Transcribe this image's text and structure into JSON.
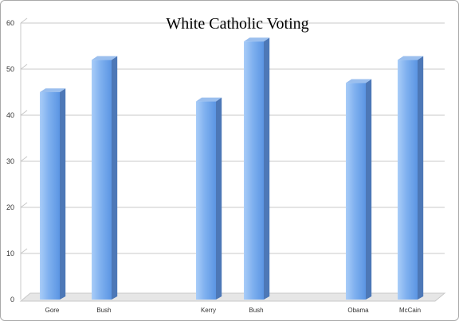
{
  "chart_data": {
    "type": "bar",
    "title": "White Catholic Voting",
    "categories": [
      "Gore",
      "Bush",
      "Kerry",
      "Bush",
      "Obama",
      "McCain"
    ],
    "values": [
      45,
      52,
      43,
      56,
      47,
      52
    ],
    "groups": [
      {
        "members": [
          0,
          1
        ]
      },
      {
        "members": [
          2,
          3
        ]
      },
      {
        "members": [
          4,
          5
        ]
      }
    ],
    "ylim": [
      0,
      60
    ],
    "yticks": [
      0,
      10,
      20,
      30,
      40,
      50,
      60
    ],
    "grid": true,
    "legend": "none",
    "xlabel": "",
    "ylabel": "",
    "colors": {
      "bar_front_light": "#a9cdf8",
      "bar_front_mid": "#7fb0ef",
      "bar_front_dark": "#5b95e3",
      "bar_side": "#4d78b7",
      "bar_top": "#9bbfee",
      "grid": "#c8c8c8",
      "floor": "#e6e6e6"
    }
  }
}
